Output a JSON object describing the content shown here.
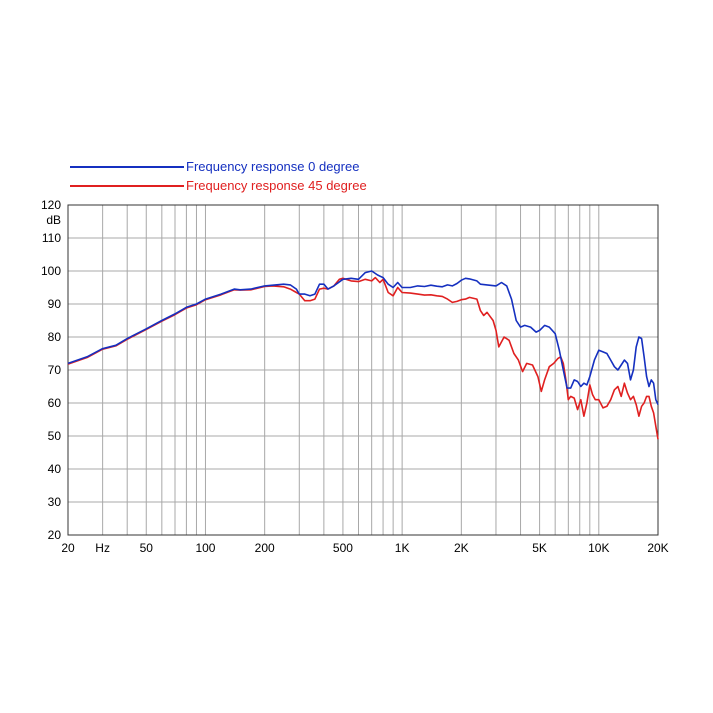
{
  "chart_data": {
    "type": "line",
    "title": "",
    "xlabel": "",
    "ylabel": "dB",
    "xscale": "log",
    "xlim": [
      20,
      20000
    ],
    "ylim": [
      20,
      120
    ],
    "grid": true,
    "legend_position": "top-left",
    "y_ticks": [
      {
        "value": 20,
        "label": "20"
      },
      {
        "value": 30,
        "label": "30"
      },
      {
        "value": 40,
        "label": "40"
      },
      {
        "value": 50,
        "label": "50"
      },
      {
        "value": 60,
        "label": "60"
      },
      {
        "value": 70,
        "label": "70"
      },
      {
        "value": 80,
        "label": "80"
      },
      {
        "value": 90,
        "label": "90"
      },
      {
        "value": 100,
        "label": "100"
      },
      {
        "value": 110,
        "label": "110"
      },
      {
        "value": 120,
        "label": "120"
      }
    ],
    "x_ticks": [
      {
        "value": 20,
        "label": "20"
      },
      {
        "value": 30,
        "label": "Hz"
      },
      {
        "value": 50,
        "label": "50"
      },
      {
        "value": 100,
        "label": "100"
      },
      {
        "value": 200,
        "label": "200"
      },
      {
        "value": 500,
        "label": "500"
      },
      {
        "value": 1000,
        "label": "1K"
      },
      {
        "value": 2000,
        "label": "2K"
      },
      {
        "value": 5000,
        "label": "5K"
      },
      {
        "value": 10000,
        "label": "10K"
      },
      {
        "value": 20000,
        "label": "20K"
      }
    ],
    "x_gridlines": [
      20,
      30,
      40,
      50,
      60,
      70,
      80,
      90,
      100,
      200,
      300,
      400,
      500,
      600,
      700,
      800,
      900,
      1000,
      2000,
      3000,
      4000,
      5000,
      6000,
      7000,
      8000,
      9000,
      10000,
      20000
    ],
    "series": [
      {
        "name": "Frequency response 0 degree",
        "color": "#1530c0",
        "points": [
          [
            20,
            72
          ],
          [
            25,
            74
          ],
          [
            30,
            76.5
          ],
          [
            35,
            77.5
          ],
          [
            40,
            79.5
          ],
          [
            50,
            82.5
          ],
          [
            60,
            85
          ],
          [
            70,
            87
          ],
          [
            80,
            89
          ],
          [
            90,
            90
          ],
          [
            100,
            91.5
          ],
          [
            120,
            93
          ],
          [
            140,
            94.5
          ],
          [
            150,
            94.3
          ],
          [
            170,
            94.5
          ],
          [
            200,
            95.5
          ],
          [
            220,
            95.7
          ],
          [
            250,
            96
          ],
          [
            270,
            95.8
          ],
          [
            290,
            94.5
          ],
          [
            300,
            93
          ],
          [
            320,
            93
          ],
          [
            340,
            92.5
          ],
          [
            360,
            93
          ],
          [
            380,
            96
          ],
          [
            400,
            96
          ],
          [
            420,
            94.5
          ],
          [
            450,
            95.5
          ],
          [
            500,
            97.5
          ],
          [
            550,
            97.8
          ],
          [
            600,
            97.5
          ],
          [
            650,
            99.5
          ],
          [
            700,
            100
          ],
          [
            750,
            98.8
          ],
          [
            800,
            98
          ],
          [
            850,
            96
          ],
          [
            900,
            95
          ],
          [
            950,
            96.5
          ],
          [
            1000,
            95
          ],
          [
            1100,
            95
          ],
          [
            1200,
            95.5
          ],
          [
            1300,
            95.3
          ],
          [
            1400,
            95.7
          ],
          [
            1500,
            95.4
          ],
          [
            1600,
            95.2
          ],
          [
            1700,
            95.8
          ],
          [
            1800,
            95.5
          ],
          [
            1900,
            96.2
          ],
          [
            2000,
            97.2
          ],
          [
            2100,
            97.8
          ],
          [
            2200,
            97.6
          ],
          [
            2400,
            97
          ],
          [
            2500,
            96
          ],
          [
            2700,
            95.8
          ],
          [
            3000,
            95.5
          ],
          [
            3200,
            96.5
          ],
          [
            3400,
            95.5
          ],
          [
            3600,
            91.5
          ],
          [
            3800,
            85
          ],
          [
            4000,
            83
          ],
          [
            4200,
            83.5
          ],
          [
            4500,
            83
          ],
          [
            4800,
            81.5
          ],
          [
            5000,
            82
          ],
          [
            5300,
            83.5
          ],
          [
            5600,
            83
          ],
          [
            6000,
            81
          ],
          [
            6300,
            76
          ],
          [
            6600,
            70
          ],
          [
            6900,
            64.5
          ],
          [
            7200,
            64.5
          ],
          [
            7500,
            67
          ],
          [
            7800,
            66.5
          ],
          [
            8100,
            65
          ],
          [
            8400,
            66
          ],
          [
            8700,
            65.5
          ],
          [
            9000,
            68
          ],
          [
            9500,
            73
          ],
          [
            10000,
            76
          ],
          [
            10500,
            75.5
          ],
          [
            11000,
            75
          ],
          [
            11500,
            73
          ],
          [
            12000,
            71
          ],
          [
            12500,
            70
          ],
          [
            13000,
            71.5
          ],
          [
            13500,
            73
          ],
          [
            14000,
            72
          ],
          [
            14500,
            67
          ],
          [
            15000,
            70
          ],
          [
            15500,
            77
          ],
          [
            16000,
            80
          ],
          [
            16500,
            79.5
          ],
          [
            17000,
            74
          ],
          [
            17500,
            68
          ],
          [
            18000,
            65
          ],
          [
            18500,
            67
          ],
          [
            19000,
            66
          ],
          [
            19500,
            61
          ],
          [
            20000,
            59.5
          ]
        ]
      },
      {
        "name": "Frequency response 45 degree",
        "color": "#e02020",
        "points": [
          [
            20,
            71.8
          ],
          [
            25,
            73.8
          ],
          [
            30,
            76.3
          ],
          [
            35,
            77.3
          ],
          [
            40,
            79.3
          ],
          [
            50,
            82.3
          ],
          [
            60,
            84.8
          ],
          [
            70,
            86.8
          ],
          [
            80,
            88.8
          ],
          [
            90,
            89.8
          ],
          [
            100,
            91.3
          ],
          [
            120,
            92.8
          ],
          [
            140,
            94.3
          ],
          [
            150,
            94.2
          ],
          [
            170,
            94.3
          ],
          [
            200,
            95.3
          ],
          [
            220,
            95.5
          ],
          [
            250,
            95.2
          ],
          [
            270,
            94.5
          ],
          [
            290,
            93.5
          ],
          [
            300,
            93
          ],
          [
            320,
            91
          ],
          [
            340,
            91
          ],
          [
            360,
            91.5
          ],
          [
            380,
            94.5
          ],
          [
            400,
            94.8
          ],
          [
            420,
            94.5
          ],
          [
            450,
            95.5
          ],
          [
            480,
            97.5
          ],
          [
            500,
            97.8
          ],
          [
            550,
            97
          ],
          [
            600,
            96.8
          ],
          [
            650,
            97.5
          ],
          [
            700,
            97
          ],
          [
            730,
            98
          ],
          [
            770,
            96.5
          ],
          [
            800,
            97.5
          ],
          [
            850,
            93.5
          ],
          [
            900,
            92.5
          ],
          [
            950,
            95
          ],
          [
            1000,
            93.5
          ],
          [
            1100,
            93.3
          ],
          [
            1200,
            93
          ],
          [
            1300,
            92.7
          ],
          [
            1400,
            92.8
          ],
          [
            1500,
            92.5
          ],
          [
            1600,
            92.3
          ],
          [
            1700,
            91.5
          ],
          [
            1800,
            90.5
          ],
          [
            1900,
            90.8
          ],
          [
            2000,
            91.3
          ],
          [
            2100,
            91.5
          ],
          [
            2200,
            92
          ],
          [
            2400,
            91.5
          ],
          [
            2500,
            88
          ],
          [
            2600,
            86.5
          ],
          [
            2700,
            87.5
          ],
          [
            2900,
            85
          ],
          [
            3000,
            82
          ],
          [
            3100,
            77
          ],
          [
            3300,
            80
          ],
          [
            3500,
            79
          ],
          [
            3700,
            75
          ],
          [
            3900,
            73
          ],
          [
            4100,
            69.5
          ],
          [
            4300,
            72
          ],
          [
            4600,
            71.5
          ],
          [
            4900,
            68
          ],
          [
            5100,
            63.5
          ],
          [
            5300,
            67
          ],
          [
            5600,
            71
          ],
          [
            5900,
            72
          ],
          [
            6200,
            73.5
          ],
          [
            6400,
            74
          ],
          [
            6600,
            72
          ],
          [
            6800,
            67
          ],
          [
            7000,
            61
          ],
          [
            7200,
            62
          ],
          [
            7500,
            61.5
          ],
          [
            7800,
            58
          ],
          [
            8100,
            61
          ],
          [
            8400,
            56
          ],
          [
            8700,
            60
          ],
          [
            9000,
            65.5
          ],
          [
            9300,
            62.5
          ],
          [
            9600,
            61
          ],
          [
            10000,
            61
          ],
          [
            10500,
            58.5
          ],
          [
            11000,
            59
          ],
          [
            11500,
            61
          ],
          [
            12000,
            64
          ],
          [
            12500,
            65
          ],
          [
            13000,
            62
          ],
          [
            13500,
            66
          ],
          [
            14000,
            63
          ],
          [
            14500,
            61
          ],
          [
            15000,
            62
          ],
          [
            15500,
            59.5
          ],
          [
            16000,
            56
          ],
          [
            16500,
            59
          ],
          [
            17000,
            60
          ],
          [
            17500,
            62
          ],
          [
            18000,
            62
          ],
          [
            18500,
            59
          ],
          [
            19000,
            57
          ],
          [
            19500,
            53
          ],
          [
            20000,
            49
          ]
        ]
      }
    ]
  }
}
